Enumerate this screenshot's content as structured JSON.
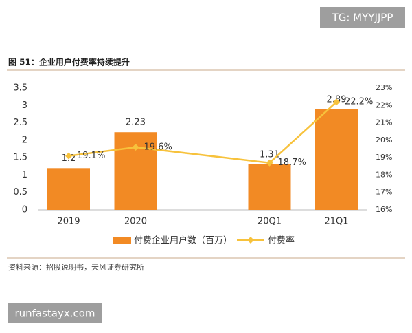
{
  "chart_data": {
    "type": "bar",
    "title": "图 51：企业用户付费率持续提升",
    "source": "资料来源：招股说明书，天风证券研究所",
    "categories": [
      "2019",
      "2020",
      "20Q1",
      "21Q1"
    ],
    "series": [
      {
        "name": "付费企业用户数（百万）",
        "type": "bar",
        "color": "#f28a24",
        "values": [
          1.2,
          2.23,
          1.31,
          2.89
        ]
      },
      {
        "name": "付费率",
        "type": "line",
        "axis": "y2",
        "color": "#f7c23c",
        "values": [
          19.1,
          19.6,
          18.7,
          22.2
        ],
        "value_labels": [
          "19.1%",
          "19.6%",
          "18.7%",
          "22.2%"
        ]
      }
    ],
    "ylim": [
      0,
      3.5
    ],
    "yticks": [
      0,
      0.5,
      1,
      1.5,
      2,
      2.5,
      3,
      3.5
    ],
    "y2lim": [
      16,
      23
    ],
    "y2ticks": [
      {
        "value": 16,
        "label": "16%"
      },
      {
        "value": 17,
        "label": "17%"
      },
      {
        "value": 18,
        "label": "18%"
      },
      {
        "value": 19,
        "label": "19%"
      },
      {
        "value": 20,
        "label": "20%"
      },
      {
        "value": 21,
        "label": "21%"
      },
      {
        "value": 22,
        "label": "22%"
      },
      {
        "value": 23,
        "label": "23%"
      }
    ],
    "legend": "bottom"
  },
  "watermarks": [
    "TG: MYYJJPP",
    "runfastayx.com"
  ]
}
